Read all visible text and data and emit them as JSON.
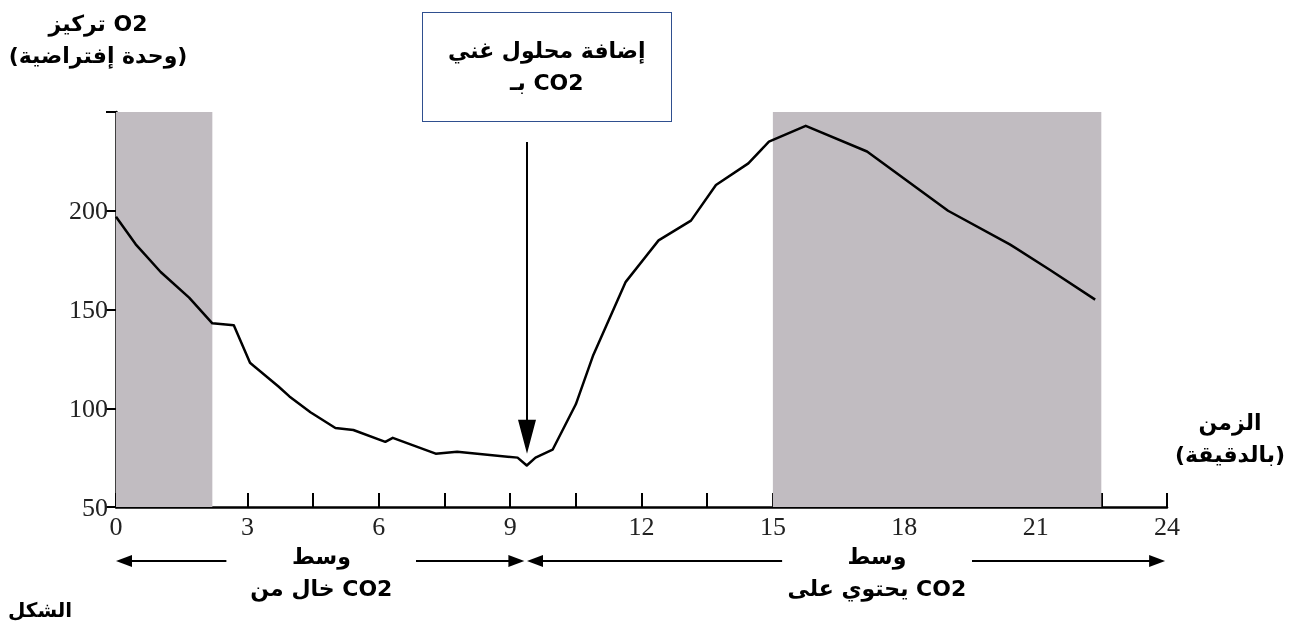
{
  "chart_data": {
    "type": "line",
    "ylabel": "تركيز O2\n(وحدة إفتراضية)",
    "xlabel": "الزمن\n(بالدقيقة)",
    "x": [
      0,
      0.45,
      1.02,
      1.67,
      2.2,
      2.69,
      3.06,
      3.71,
      3.96,
      4.44,
      5.01,
      5.42,
      6.15,
      6.32,
      7.3,
      7.79,
      9.17,
      9.38,
      9.58,
      9.97,
      10.5,
      10.9,
      11.64,
      12.39,
      13.13,
      13.7,
      14.44,
      14.91,
      15.75,
      17.15,
      19.0,
      20.41,
      21.33,
      22.36
    ],
    "series": [
      {
        "color": "#000000",
        "values": [
          197,
          183,
          169,
          156,
          143,
          142,
          123,
          111,
          106,
          98,
          90,
          89,
          83,
          85,
          77,
          78,
          75,
          71,
          75,
          79,
          102,
          127,
          164,
          185,
          195,
          213,
          224,
          235,
          243,
          230,
          200,
          183,
          170,
          155
        ]
      }
    ],
    "xlim": [
      0,
      24
    ],
    "xticks": [
      0,
      {
        "value": 1.5,
        "label": null
      },
      3,
      {
        "value": 4.5,
        "label": null
      },
      6,
      {
        "value": 7.5,
        "label": null
      },
      9,
      {
        "value": 10.5,
        "label": null
      },
      12,
      {
        "value": 13.5,
        "label": null
      },
      15,
      {
        "value": 16.5,
        "label": null
      },
      18,
      {
        "value": 19.5,
        "label": null
      },
      21,
      {
        "value": 22.5,
        "label": null
      },
      24
    ],
    "ylim": [
      50,
      250
    ],
    "yticks": [
      50,
      100,
      150,
      200,
      {
        "value": 250,
        "label": null
      }
    ],
    "bands": [
      {
        "axis": "x",
        "from": 0,
        "to": 2.2,
        "color": "#c1bcc1"
      },
      {
        "axis": "x",
        "from": 15,
        "to": 22.5,
        "color": "#c1bcc1"
      }
    ],
    "annotations": [
      "إضافة محلول غني\nبـ CO2",
      "وسط\nخال من CO2",
      "وسط\nيحتوي على CO2",
      "الشكل"
    ],
    "grid": false,
    "marker": "none",
    "line_style": "solid"
  }
}
